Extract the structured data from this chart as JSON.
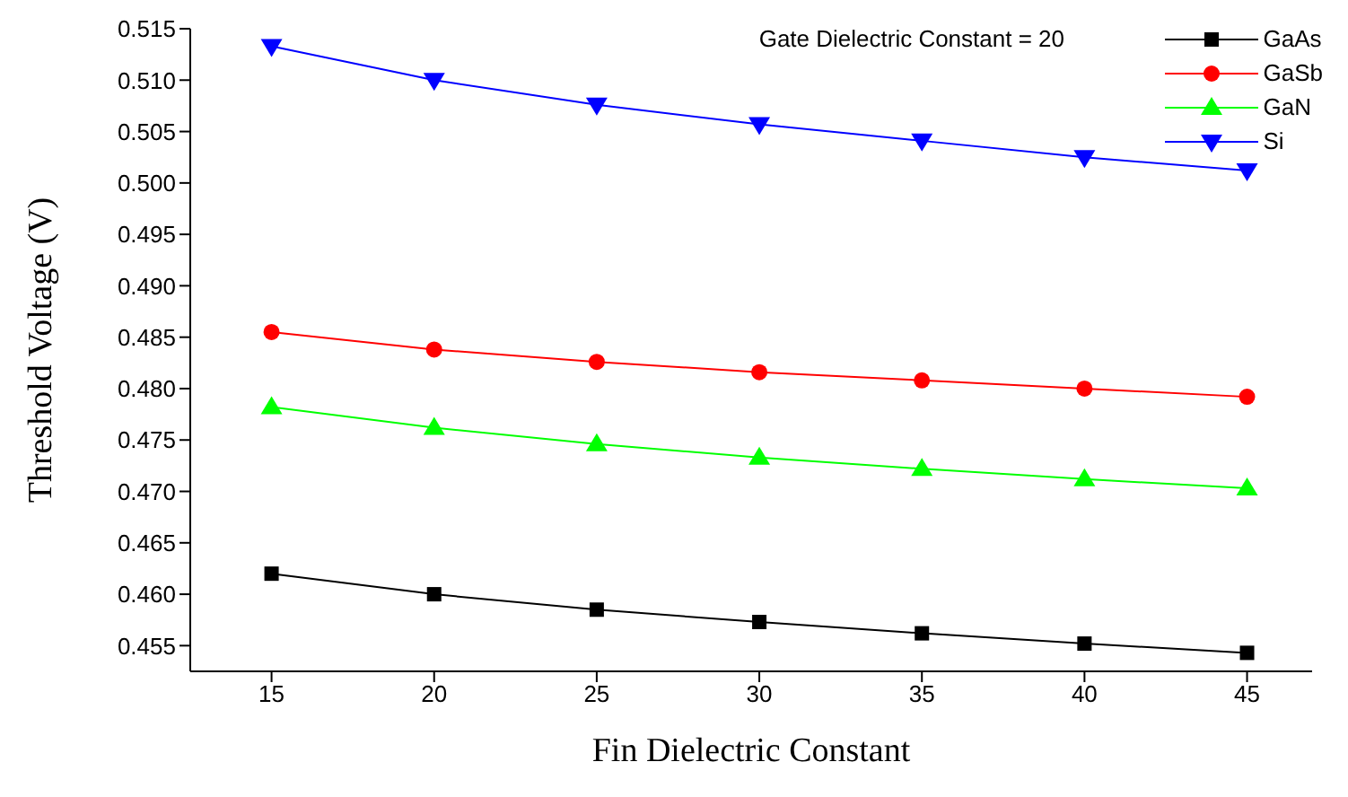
{
  "chart_data": {
    "type": "line",
    "xlabel": "Fin Dielectric Constant",
    "ylabel": "Threshold Voltage (V)",
    "annotations": [
      "Gate Dielectric Constant = 20"
    ],
    "x": [
      15,
      20,
      25,
      30,
      35,
      40,
      45
    ],
    "series": [
      {
        "name": "GaAs",
        "color": "#000000",
        "marker": "square",
        "values": [
          0.462,
          0.46,
          0.4585,
          0.4573,
          0.4562,
          0.4552,
          0.4543
        ]
      },
      {
        "name": "GaSb",
        "color": "#ff0000",
        "marker": "circle",
        "values": [
          0.4855,
          0.4838,
          0.4826,
          0.4816,
          0.4808,
          0.48,
          0.4792
        ]
      },
      {
        "name": "GaN",
        "color": "#00ff00",
        "marker": "triangle",
        "values": [
          0.4782,
          0.4762,
          0.4746,
          0.4733,
          0.4722,
          0.4712,
          0.4703
        ]
      },
      {
        "name": "Si",
        "color": "#0000ff",
        "marker": "triangle-down",
        "values": [
          0.5133,
          0.51,
          0.5076,
          0.5057,
          0.5041,
          0.5025,
          0.5012
        ]
      }
    ],
    "xlim": [
      12.5,
      47
    ],
    "xticks": [
      15,
      20,
      25,
      30,
      35,
      40,
      45
    ],
    "ylim": [
      0.4525,
      0.515
    ],
    "yticks": [
      0.455,
      {
        "value": 0.46,
        "label": "0.460"
      },
      0.465,
      {
        "value": 0.47,
        "label": "0.470"
      },
      0.475,
      {
        "value": 0.48,
        "label": "0.480"
      },
      0.485,
      {
        "value": 0.49,
        "label": "0.490"
      },
      0.495,
      {
        "value": 0.5,
        "label": "0.500"
      },
      0.505,
      {
        "value": 0.51,
        "label": "0.510"
      },
      0.515
    ],
    "grid": false,
    "legend": "top right",
    "line_style": "solid"
  }
}
